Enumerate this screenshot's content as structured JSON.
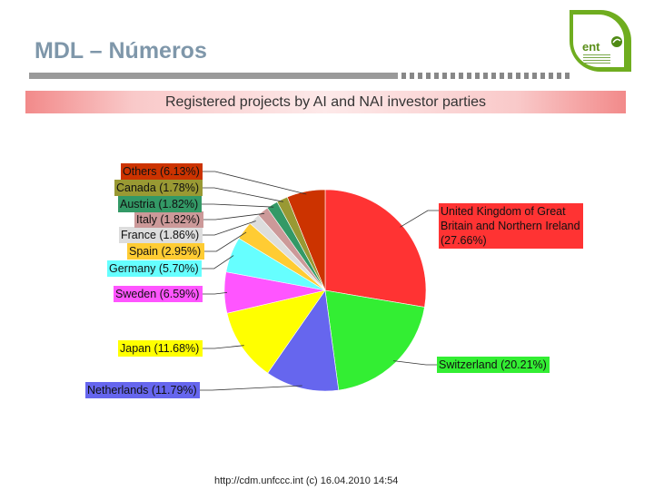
{
  "slide": {
    "title": "MDL – Números",
    "logo_text": "ent",
    "source": "http://cdm.unfccc.int (c) 16.04.2010 14:54"
  },
  "chart_data": {
    "type": "pie",
    "title": "Registered projects by AI and NAI investor parties",
    "slices": [
      {
        "label": "United Kingdom of Great Britain and Northern Ireland (27.66%)",
        "value": 27.66,
        "color": "#ff3333"
      },
      {
        "label": "Switzerland (20.21%)",
        "value": 20.21,
        "color": "#33ee33"
      },
      {
        "label": "Netherlands (11.79%)",
        "value": 11.79,
        "color": "#6666ee"
      },
      {
        "label": "Japan (11.68%)",
        "value": 11.68,
        "color": "#ffff00"
      },
      {
        "label": "Sweden (6.59%)",
        "value": 6.59,
        "color": "#ff55ff"
      },
      {
        "label": "Germany (5.70%)",
        "value": 5.7,
        "color": "#66ffff"
      },
      {
        "label": "Spain (2.95%)",
        "value": 2.95,
        "color": "#ffcc33"
      },
      {
        "label": "France (1.86%)",
        "value": 1.86,
        "color": "#dddddd"
      },
      {
        "label": "Italy (1.82%)",
        "value": 1.82,
        "color": "#cc9999"
      },
      {
        "label": "Austria (1.82%)",
        "value": 1.82,
        "color": "#339966"
      },
      {
        "label": "Canada (1.78%)",
        "value": 1.78,
        "color": "#999933"
      },
      {
        "label": "Others (6.13%)",
        "value": 6.13,
        "color": "#cc3300"
      }
    ]
  }
}
